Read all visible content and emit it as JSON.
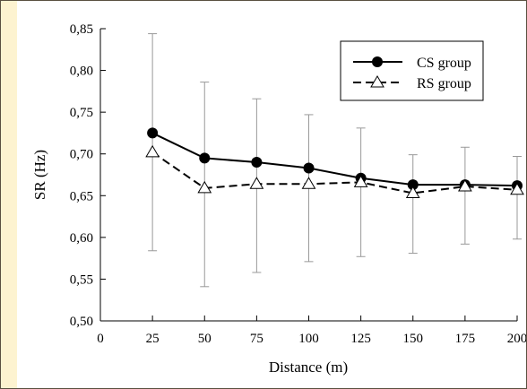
{
  "chart_data": {
    "type": "line",
    "xlabel": "Distance (m)",
    "ylabel": "SR (Hz)",
    "xlim": [
      0,
      200
    ],
    "ylim": [
      0.5,
      0.85
    ],
    "x_ticks": [
      0,
      25,
      50,
      75,
      100,
      125,
      150,
      175,
      200
    ],
    "x_tick_labels": [
      "0",
      "25",
      "50",
      "75",
      "100",
      "125",
      "150",
      "175",
      "200"
    ],
    "y_ticks": [
      0.5,
      0.55,
      0.6,
      0.65,
      0.7,
      0.75,
      0.8,
      0.85
    ],
    "y_tick_labels": [
      "0,50",
      "0,55",
      "0,60",
      "0,65",
      "0,70",
      "0,75",
      "0,80",
      "0,85"
    ],
    "grid": false,
    "legend_position": "top-right",
    "error_bars": {
      "x": [
        25,
        50,
        75,
        100,
        125,
        150,
        175,
        200
      ],
      "upper": [
        0.844,
        0.786,
        0.766,
        0.747,
        0.731,
        0.699,
        0.708,
        0.697
      ],
      "lower": [
        0.584,
        0.541,
        0.558,
        0.571,
        0.577,
        0.581,
        0.592,
        0.598
      ]
    },
    "series": [
      {
        "name": "CS group",
        "x": [
          25,
          50,
          75,
          100,
          125,
          150,
          175,
          200
        ],
        "values": [
          0.725,
          0.695,
          0.69,
          0.683,
          0.671,
          0.663,
          0.663,
          0.662
        ],
        "line_style": "solid",
        "marker": "filled-circle"
      },
      {
        "name": "RS group",
        "x": [
          25,
          50,
          75,
          100,
          125,
          150,
          175,
          200
        ],
        "values": [
          0.702,
          0.659,
          0.664,
          0.664,
          0.666,
          0.653,
          0.661,
          0.657
        ],
        "line_style": "dashed",
        "marker": "open-triangle"
      }
    ]
  }
}
